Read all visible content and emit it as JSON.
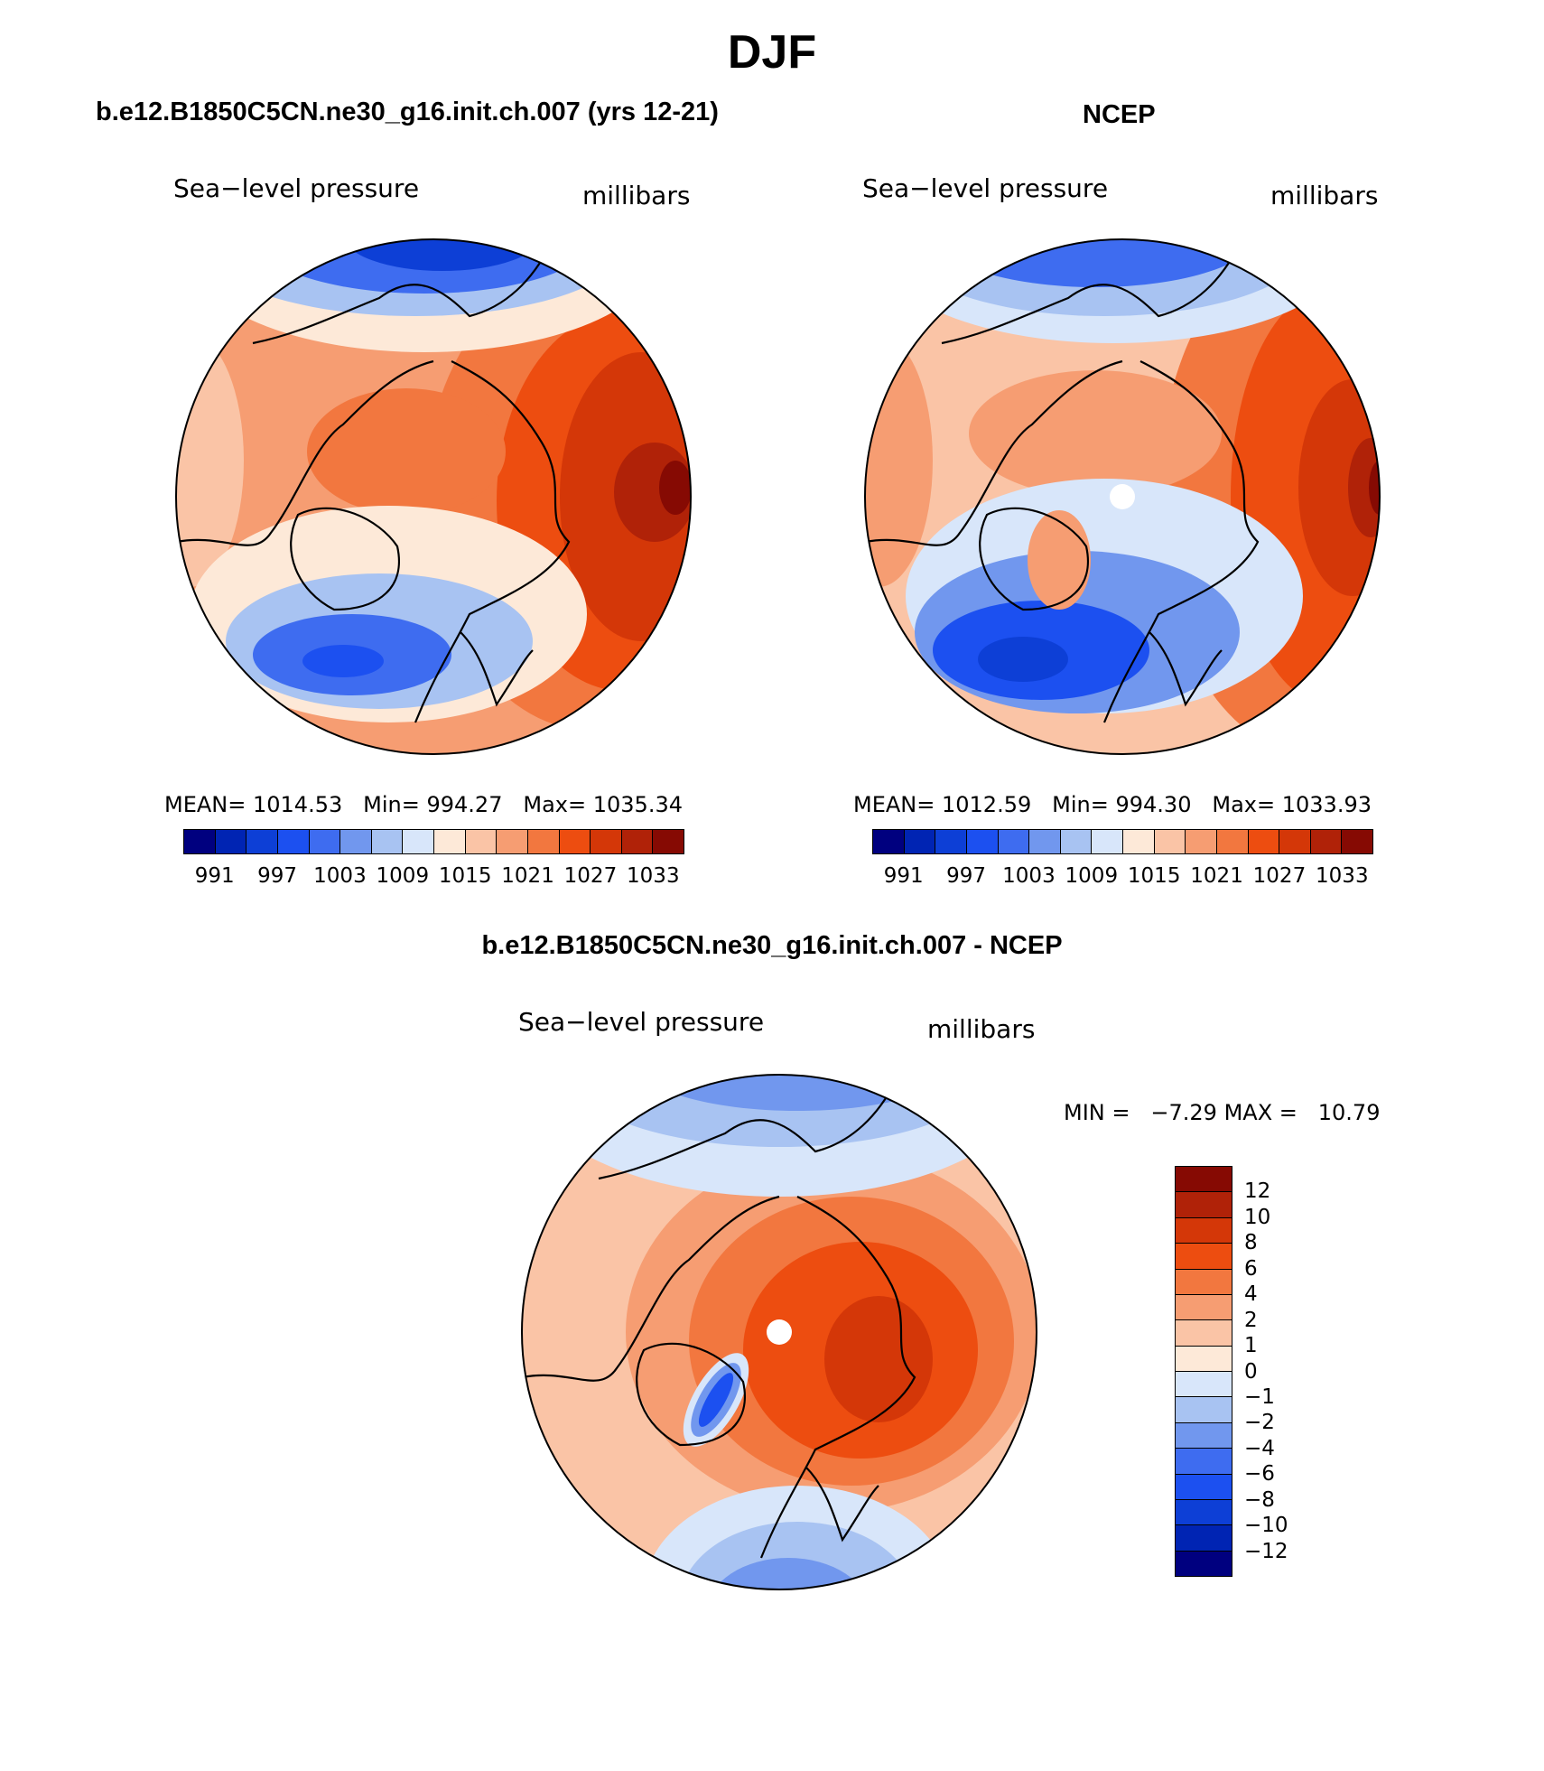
{
  "figure": {
    "season": "DJF",
    "panel_left_title": "b.e12.B1850C5CN.ne30_g16.init.ch.007 (yrs 12-21)",
    "panel_right_title": "NCEP",
    "panel_diff_title": "b.e12.B1850C5CN.ne30_g16.init.ch.007 - NCEP",
    "variable": "Sea−level pressure",
    "units": "millibars"
  },
  "palettes": {
    "abs": [
      "#00007f",
      "#0024b3",
      "#0d3fd6",
      "#1c50f0",
      "#3e6cf0",
      "#7197ee",
      "#a8c3f2",
      "#d8e6fa",
      "#fde9d8",
      "#fac4a6",
      "#f69d72",
      "#f2773f",
      "#ed4d10",
      "#d43708",
      "#b02208",
      "#860a03"
    ],
    "diff": [
      "#860a03",
      "#b02208",
      "#d43708",
      "#ed4d10",
      "#f2773f",
      "#f69d72",
      "#fac4a6",
      "#fde9d8",
      "#d8e6fa",
      "#a8c3f2",
      "#7197ee",
      "#3e6cf0",
      "#1c50f0",
      "#0d3fd6",
      "#0024b3",
      "#00007f"
    ]
  },
  "chart_data": [
    {
      "type": "heatmap",
      "title": "b.e12.B1850C5CN.ne30_g16.init.ch.007 (yrs 12-21)",
      "variable": "Sea−level pressure",
      "units": "millibars",
      "projection": "polar stereographic, north pole",
      "stats": {
        "mean_label": "MEAN=",
        "mean": "1014.53",
        "min_label": "Min=",
        "min": "994.27",
        "max_label": "Max=",
        "max": "1035.34"
      },
      "levels": [
        "991",
        "994",
        "997",
        "1000",
        "1003",
        "1006",
        "1009",
        "1012",
        "1015",
        "1018",
        "1021",
        "1024",
        "1027",
        "1030",
        "1033"
      ],
      "tick_labels": [
        "991",
        "997",
        "1003",
        "1009",
        "1015",
        "1021",
        "1027",
        "1033"
      ]
    },
    {
      "type": "heatmap",
      "title": "NCEP",
      "variable": "Sea−level pressure",
      "units": "millibars",
      "projection": "polar stereographic, north pole",
      "stats": {
        "mean_label": "MEAN=",
        "mean": "1012.59",
        "min_label": "Min=",
        "min": "994.30",
        "max_label": "Max=",
        "max": "1033.93"
      },
      "levels": [
        "991",
        "994",
        "997",
        "1000",
        "1003",
        "1006",
        "1009",
        "1012",
        "1015",
        "1018",
        "1021",
        "1024",
        "1027",
        "1030",
        "1033"
      ],
      "tick_labels": [
        "991",
        "997",
        "1003",
        "1009",
        "1015",
        "1021",
        "1027",
        "1033"
      ]
    },
    {
      "type": "heatmap",
      "title": "b.e12.B1850C5CN.ne30_g16.init.ch.007 - NCEP",
      "variable": "Sea−level pressure",
      "units": "millibars",
      "projection": "polar stereographic, north pole",
      "stats": {
        "min_label": "MIN =",
        "min": "−7.29",
        "max_label": "MAX =",
        "max": "10.79"
      },
      "levels": [
        "12",
        "10",
        "8",
        "6",
        "4",
        "2",
        "1",
        "0",
        "−1",
        "−2",
        "−4",
        "−6",
        "−8",
        "−10",
        "−12"
      ]
    }
  ]
}
